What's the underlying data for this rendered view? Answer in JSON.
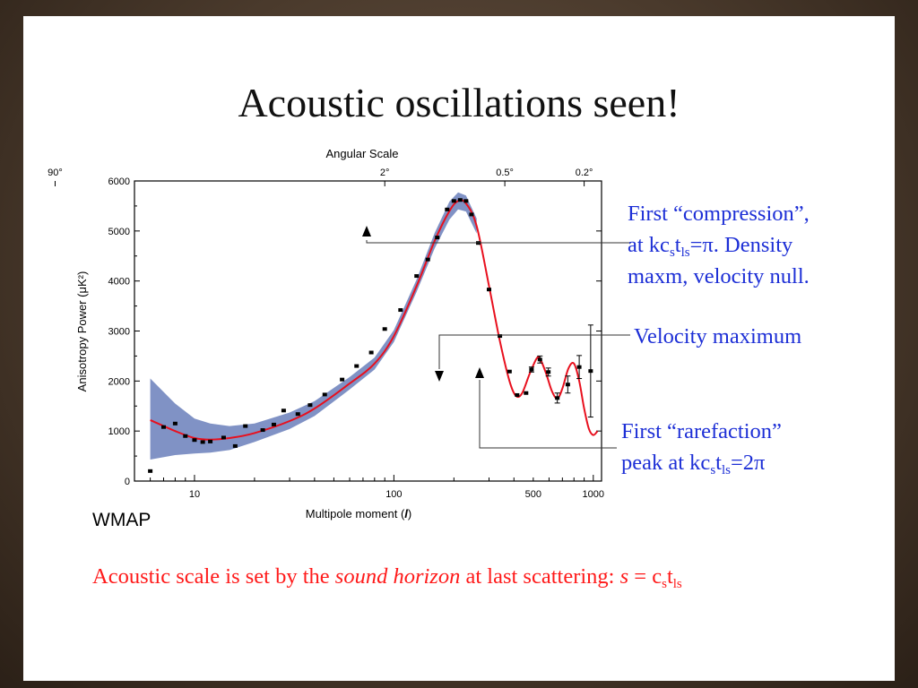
{
  "slide": {
    "title": "Acoustic oscillations seen!",
    "wmap_label": "WMAP",
    "caption": {
      "text": "Acoustic scale is set by the ",
      "emph": "sound horizon",
      "after": " at last scattering:  ",
      "formula_s": "s",
      "formula_eq": " = c",
      "formula_sub_s": "s",
      "formula_t": "t",
      "formula_sub_ls": "ls"
    },
    "annotations": {
      "compression": {
        "line1": "First “compression”,",
        "line2_pre": "at kc",
        "sub_s": "s",
        "t": "t",
        "sub_ls": "ls",
        "line2_post": "=π.  Density",
        "line3": "maxm, velocity null."
      },
      "velocity": {
        "line1": "Velocity maximum"
      },
      "rarefaction": {
        "line1": "First “rarefaction”",
        "line2_pre": "peak at kc",
        "sub_s": "s",
        "t": "t",
        "sub_ls": "ls",
        "line2_post": "=2π"
      }
    }
  },
  "chart_data": {
    "type": "scatter",
    "title": "",
    "top_axis_label": "Angular Scale",
    "top_ticks": [
      {
        "label": "90°",
        "l": 2
      },
      {
        "label": "2°",
        "l": 90
      },
      {
        "label": "0.5°",
        "l": 360
      },
      {
        "label": "0.2°",
        "l": 900
      }
    ],
    "xlabel": "Multipole moment (",
    "xlabel_var": "l",
    "xlabel_close": ")",
    "ylabel": "Anisotropy Power (μK²)",
    "x_scale": "log",
    "xlim": [
      5,
      1100
    ],
    "ylim": [
      0,
      6000
    ],
    "x_ticks": [
      {
        "label": "10",
        "value": 10
      },
      {
        "label": "100",
        "value": 100
      },
      {
        "label": "500",
        "value": 500
      },
      {
        "label": "1000",
        "value": 1000
      }
    ],
    "y_ticks": [
      "0",
      "1000",
      "2000",
      "3000",
      "4000",
      "5000",
      "6000"
    ],
    "y_tick_values": [
      0,
      1000,
      2000,
      3000,
      4000,
      5000,
      6000
    ],
    "colors": {
      "model": "#e8101e",
      "band": "#6a7fbb",
      "points": "#000000"
    },
    "model_curve": {
      "name": "",
      "x": [
        6,
        8,
        10,
        12,
        15,
        20,
        30,
        40,
        60,
        80,
        100,
        130,
        160,
        190,
        210,
        230,
        260,
        300,
        340,
        380,
        410,
        440,
        480,
        520,
        540,
        580,
        620,
        660,
        700,
        750,
        800,
        850,
        900,
        950,
        1000,
        1050
      ],
      "y": [
        1220,
        1000,
        860,
        830,
        860,
        960,
        1200,
        1450,
        1950,
        2350,
        2900,
        3900,
        4800,
        5400,
        5600,
        5550,
        5100,
        3900,
        2800,
        2000,
        1700,
        1760,
        2150,
        2450,
        2450,
        2150,
        1800,
        1650,
        1850,
        2250,
        2350,
        2000,
        1450,
        1050,
        920,
        1000
      ]
    },
    "cosmic_variance_band": {
      "x": [
        6,
        8,
        10,
        12,
        15,
        20,
        30,
        40,
        60,
        80,
        100,
        130,
        160,
        190,
        210,
        230,
        260
      ],
      "upper": [
        2050,
        1550,
        1250,
        1150,
        1100,
        1150,
        1370,
        1600,
        2080,
        2470,
        3020,
        4030,
        4960,
        5590,
        5770,
        5710,
        5250
      ],
      "lower": [
        430,
        520,
        550,
        570,
        620,
        780,
        1040,
        1300,
        1830,
        2230,
        2780,
        3780,
        4650,
        5230,
        5430,
        5390,
        4950
      ]
    },
    "data_points": [
      {
        "l": 6,
        "y": 200,
        "err": 0
      },
      {
        "l": 7,
        "y": 1080,
        "err": 0
      },
      {
        "l": 8,
        "y": 1150,
        "err": 0
      },
      {
        "l": 9,
        "y": 900,
        "err": 0
      },
      {
        "l": 10,
        "y": 820,
        "err": 0
      },
      {
        "l": 11,
        "y": 780,
        "err": 0
      },
      {
        "l": 12,
        "y": 790,
        "err": 0
      },
      {
        "l": 14,
        "y": 870,
        "err": 0
      },
      {
        "l": 16,
        "y": 700,
        "err": 0
      },
      {
        "l": 18,
        "y": 1100,
        "err": 0
      },
      {
        "l": 22,
        "y": 1020,
        "err": 0
      },
      {
        "l": 25,
        "y": 1130,
        "err": 0
      },
      {
        "l": 28,
        "y": 1410,
        "err": 0
      },
      {
        "l": 33,
        "y": 1340,
        "err": 0
      },
      {
        "l": 38,
        "y": 1520,
        "err": 0
      },
      {
        "l": 45,
        "y": 1730,
        "err": 0
      },
      {
        "l": 55,
        "y": 2030,
        "err": 0
      },
      {
        "l": 65,
        "y": 2300,
        "err": 0
      },
      {
        "l": 77,
        "y": 2570,
        "err": 0
      },
      {
        "l": 90,
        "y": 3040,
        "err": 0
      },
      {
        "l": 108,
        "y": 3420,
        "err": 0
      },
      {
        "l": 130,
        "y": 4100,
        "err": 0
      },
      {
        "l": 148,
        "y": 4430,
        "err": 0
      },
      {
        "l": 165,
        "y": 4870,
        "err": 0
      },
      {
        "l": 185,
        "y": 5430,
        "err": 0
      },
      {
        "l": 200,
        "y": 5600,
        "err": 0
      },
      {
        "l": 215,
        "y": 5620,
        "err": 0
      },
      {
        "l": 230,
        "y": 5600,
        "err": 0
      },
      {
        "l": 245,
        "y": 5330,
        "err": 0
      },
      {
        "l": 265,
        "y": 4760,
        "err": 0
      },
      {
        "l": 300,
        "y": 3830,
        "err": 0
      },
      {
        "l": 340,
        "y": 2900,
        "err": 0
      },
      {
        "l": 380,
        "y": 2190,
        "err": 0
      },
      {
        "l": 415,
        "y": 1720,
        "err": 0
      },
      {
        "l": 460,
        "y": 1760,
        "err": 0
      },
      {
        "l": 490,
        "y": 2230,
        "err": 50
      },
      {
        "l": 540,
        "y": 2430,
        "err": 70
      },
      {
        "l": 595,
        "y": 2180,
        "err": 80
      },
      {
        "l": 660,
        "y": 1660,
        "err": 100
      },
      {
        "l": 745,
        "y": 1930,
        "err": 170
      },
      {
        "l": 850,
        "y": 2280,
        "err": 230
      },
      {
        "l": 970,
        "y": 2200,
        "err": 920
      }
    ]
  }
}
